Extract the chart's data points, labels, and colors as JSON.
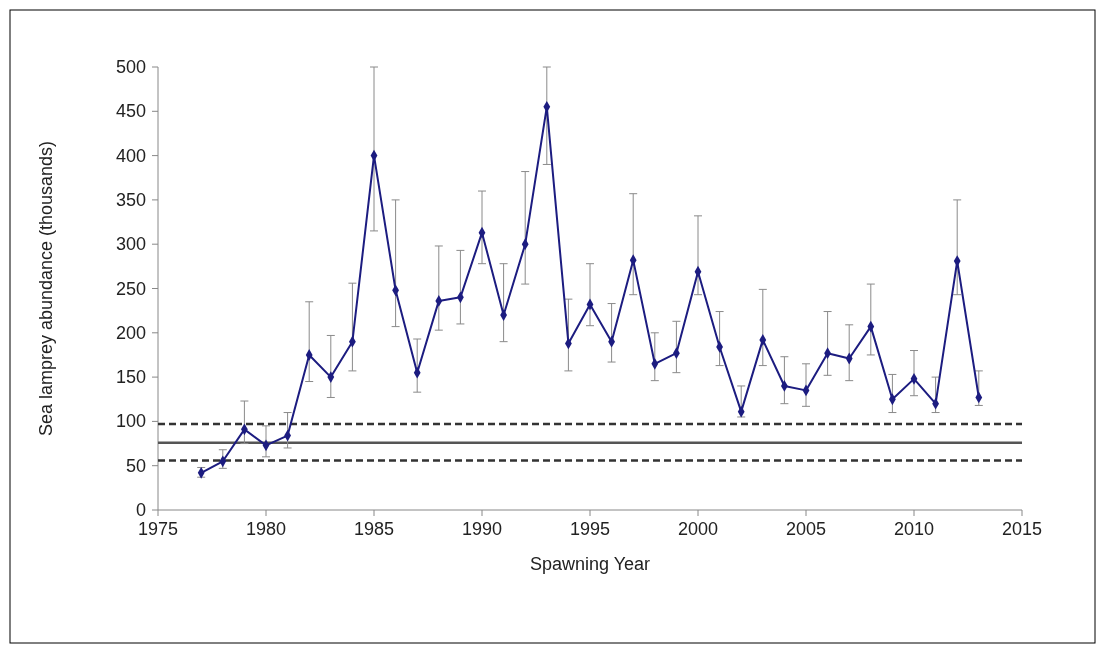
{
  "chart_data": {
    "type": "line",
    "xlabel": "Spawning Year",
    "ylabel": "Sea lamprey abundance (thousands)",
    "x": [
      1977,
      1978,
      1979,
      1980,
      1981,
      1982,
      1983,
      1984,
      1985,
      1986,
      1987,
      1988,
      1989,
      1990,
      1991,
      1992,
      1993,
      1994,
      1995,
      1996,
      1997,
      1998,
      1999,
      2000,
      2001,
      2002,
      2003,
      2004,
      2005,
      2006,
      2007,
      2008,
      2009,
      2010,
      2011,
      2012,
      2013
    ],
    "series": [
      {
        "color": "#1c1c80",
        "values": [
          42,
          55,
          91,
          73,
          84,
          175,
          150,
          190,
          400,
          248,
          155,
          236,
          240,
          313,
          220,
          300,
          455,
          188,
          232,
          190,
          282,
          165,
          177,
          269,
          184,
          111,
          192,
          140,
          135,
          177,
          171,
          207,
          125,
          148,
          120,
          281,
          127
        ],
        "errors": [
          [
            37,
            48
          ],
          [
            47,
            68
          ],
          [
            75,
            123
          ],
          [
            60,
            95
          ],
          [
            70,
            110
          ],
          [
            145,
            235
          ],
          [
            127,
            197
          ],
          [
            157,
            256
          ],
          [
            315,
            500
          ],
          [
            207,
            350
          ],
          [
            133,
            193
          ],
          [
            203,
            298
          ],
          [
            210,
            293
          ],
          [
            278,
            360
          ],
          [
            190,
            278
          ],
          [
            255,
            382
          ],
          [
            390,
            500
          ],
          [
            157,
            238
          ],
          [
            208,
            278
          ],
          [
            167,
            233
          ],
          [
            243,
            357
          ],
          [
            146,
            200
          ],
          [
            155,
            213
          ],
          [
            243,
            332
          ],
          [
            163,
            224
          ],
          [
            105,
            140
          ],
          [
            163,
            249
          ],
          [
            120,
            173
          ],
          [
            117,
            165
          ],
          [
            152,
            224
          ],
          [
            146,
            209
          ],
          [
            175,
            255
          ],
          [
            110,
            153
          ],
          [
            129,
            180
          ],
          [
            110,
            150
          ],
          [
            243,
            350
          ],
          [
            118,
            157
          ]
        ]
      }
    ],
    "marker": "diamond",
    "line_style": "solid",
    "grid": false,
    "xlim": [
      1975,
      2015
    ],
    "xticks": [
      1975,
      1980,
      1985,
      1990,
      1995,
      2000,
      2005,
      2010,
      2015
    ],
    "ylim": [
      0,
      500
    ],
    "yticks": [
      0,
      50,
      100,
      150,
      200,
      250,
      300,
      350,
      400,
      450,
      500
    ],
    "ref_lines": [
      {
        "axis": "y",
        "value": 76,
        "color": "#555555",
        "line_style": "solid"
      },
      {
        "axis": "y",
        "value": 97,
        "color": "#333333",
        "line_style": "dashed"
      },
      {
        "axis": "y",
        "value": 56,
        "color": "#333333",
        "line_style": "dashed"
      }
    ]
  }
}
